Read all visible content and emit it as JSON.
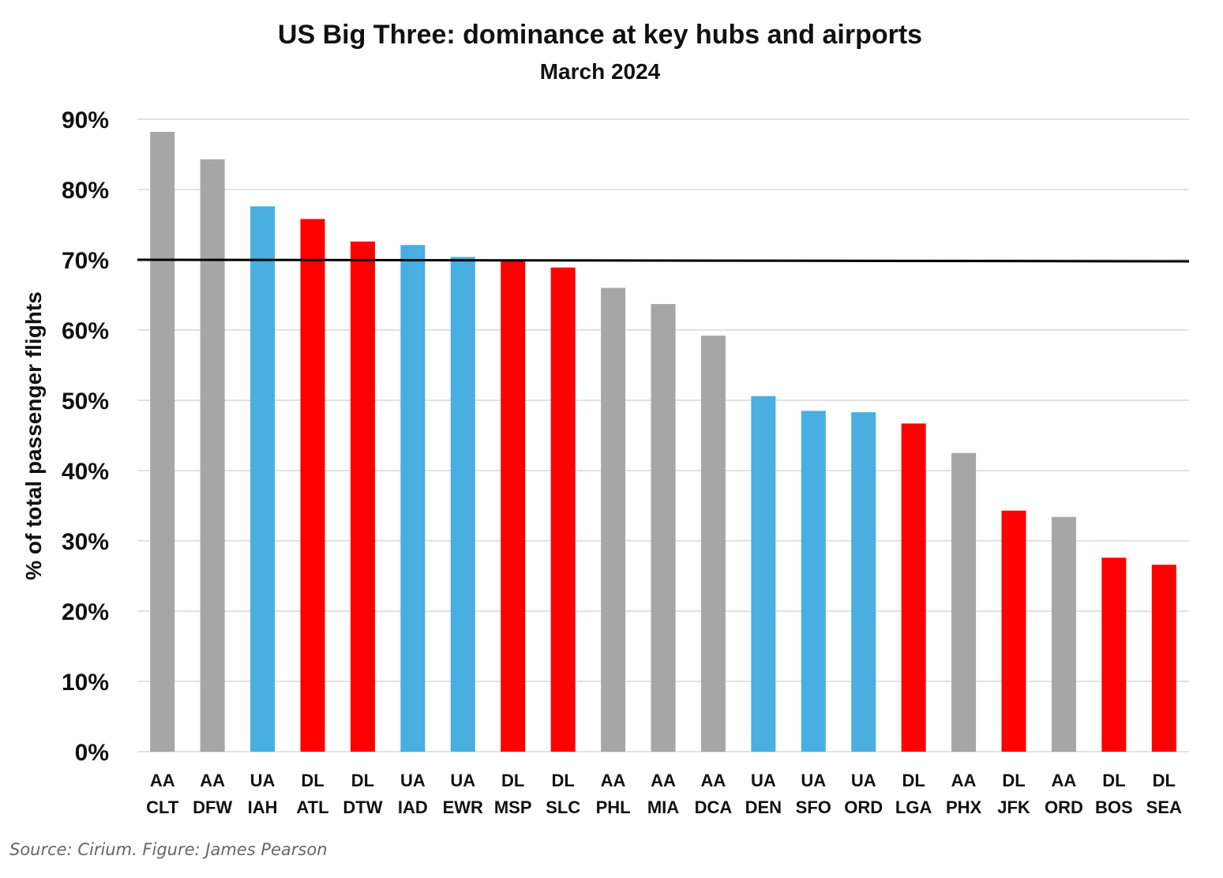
{
  "chart_data": {
    "type": "bar",
    "title": "US Big Three: dominance at key hubs and airports",
    "subtitle": "March 2024",
    "xlabel": "",
    "ylabel": "% of total passenger flights",
    "ylim": [
      0,
      90
    ],
    "yticks": [
      "0%",
      "10%",
      "20%",
      "30%",
      "40%",
      "50%",
      "60%",
      "70%",
      "80%",
      "90%"
    ],
    "gridlines": true,
    "reference_line": 70,
    "categories": [
      {
        "airline": "AA",
        "airport": "CLT"
      },
      {
        "airline": "AA",
        "airport": "DFW"
      },
      {
        "airline": "UA",
        "airport": "IAH"
      },
      {
        "airline": "DL",
        "airport": "ATL"
      },
      {
        "airline": "DL",
        "airport": "DTW"
      },
      {
        "airline": "UA",
        "airport": "IAD"
      },
      {
        "airline": "UA",
        "airport": "EWR"
      },
      {
        "airline": "DL",
        "airport": "MSP"
      },
      {
        "airline": "DL",
        "airport": "SLC"
      },
      {
        "airline": "AA",
        "airport": "PHL"
      },
      {
        "airline": "AA",
        "airport": "MIA"
      },
      {
        "airline": "AA",
        "airport": "DCA"
      },
      {
        "airline": "UA",
        "airport": "DEN"
      },
      {
        "airline": "UA",
        "airport": "SFO"
      },
      {
        "airline": "UA",
        "airport": "ORD"
      },
      {
        "airline": "DL",
        "airport": "LGA"
      },
      {
        "airline": "AA",
        "airport": "PHX"
      },
      {
        "airline": "DL",
        "airport": "JFK"
      },
      {
        "airline": "AA",
        "airport": "ORD"
      },
      {
        "airline": "DL",
        "airport": "BOS"
      },
      {
        "airline": "DL",
        "airport": "SEA"
      }
    ],
    "values": [
      88.2,
      84.3,
      77.6,
      75.8,
      72.6,
      72.1,
      70.4,
      69.8,
      68.9,
      66.0,
      63.7,
      59.2,
      50.6,
      48.5,
      48.3,
      46.7,
      42.5,
      34.3,
      33.4,
      27.6,
      26.6
    ],
    "colors": {
      "AA": "#a6a6a6",
      "UA": "#49aee0",
      "DL": "#ff0000"
    }
  },
  "source": "Source: Cirium. Figure: James Pearson"
}
